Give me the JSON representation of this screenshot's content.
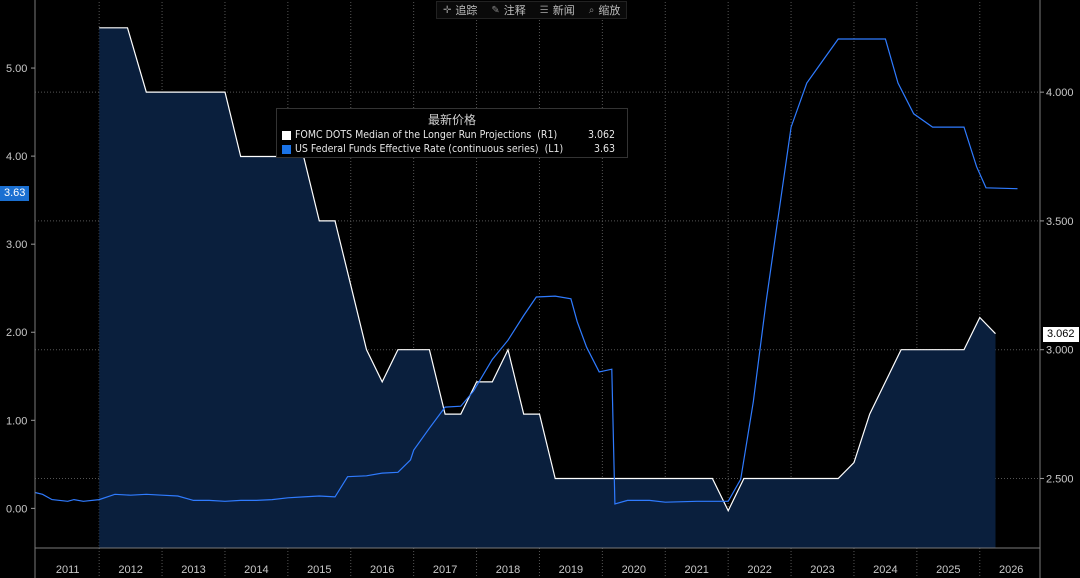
{
  "toolbar": {
    "items": [
      {
        "label": "追踪",
        "icon": "crosshair-icon",
        "glyph": "✛"
      },
      {
        "label": "注释",
        "icon": "pen-icon",
        "glyph": "✎"
      },
      {
        "label": "新闻",
        "icon": "news-icon",
        "glyph": "☰"
      },
      {
        "label": "缩放",
        "icon": "zoom-icon",
        "glyph": "⌕"
      }
    ]
  },
  "legend": {
    "title": "最新价格",
    "entries": [
      {
        "name": "FOMC DOTS Median of the Longer Run Projections  (R1)",
        "value": "3.062",
        "color": "#ffffff"
      },
      {
        "name": "US Federal Funds Effective Rate (continuous series)  (L1)",
        "value": "3.63",
        "color": "#1a73e8"
      }
    ]
  },
  "badges": {
    "left": {
      "text": "3.63",
      "bg": "#1a6fd1",
      "color": "#ffffff"
    },
    "right": {
      "text": "3.062",
      "bg": "#ffffff",
      "color": "#000000"
    }
  },
  "colors": {
    "background": "#000000",
    "area_fill": "#0a1f3d",
    "dots_line": "#ffffff",
    "fed_line": "#2f7bff",
    "grid": "#555555"
  },
  "chart_data": {
    "type": "line",
    "x_tick_labels": [
      "2011",
      "2012",
      "2013",
      "2014",
      "2015",
      "2016",
      "2017",
      "2018",
      "2019",
      "2020",
      "2021",
      "2022",
      "2023",
      "2024",
      "2025",
      "2026"
    ],
    "grid": true,
    "left_axis": {
      "ticks": [
        "0.00",
        "1.00",
        "2.00",
        "3.00",
        "4.00",
        "5.00"
      ],
      "ylim": [
        -0.45,
        5.75
      ]
    },
    "right_axis": {
      "ticks": [
        "2.500",
        "3.000",
        "3.500",
        "4.000"
      ],
      "ylim": [
        2.23,
        4.35
      ]
    },
    "series": [
      {
        "name": "FOMC DOTS Median of the Longer Run Projections",
        "axis": "right",
        "style": "area",
        "points": [
          [
            2012.0,
            4.25
          ],
          [
            2012.45,
            4.25
          ],
          [
            2012.75,
            4.0
          ],
          [
            2013.0,
            4.0
          ],
          [
            2013.5,
            4.0
          ],
          [
            2014.0,
            4.0
          ],
          [
            2014.25,
            3.75
          ],
          [
            2014.75,
            3.75
          ],
          [
            2015.25,
            3.75
          ],
          [
            2015.5,
            3.5
          ],
          [
            2015.75,
            3.5
          ],
          [
            2016.0,
            3.25
          ],
          [
            2016.25,
            3.0
          ],
          [
            2016.5,
            2.875
          ],
          [
            2016.75,
            3.0
          ],
          [
            2017.25,
            3.0
          ],
          [
            2017.5,
            2.75
          ],
          [
            2017.75,
            2.75
          ],
          [
            2018.0,
            2.875
          ],
          [
            2018.25,
            2.875
          ],
          [
            2018.5,
            3.0
          ],
          [
            2018.75,
            2.75
          ],
          [
            2019.0,
            2.75
          ],
          [
            2019.25,
            2.5
          ],
          [
            2020.0,
            2.5
          ],
          [
            2021.0,
            2.5
          ],
          [
            2021.75,
            2.5
          ],
          [
            2022.0,
            2.375
          ],
          [
            2022.25,
            2.5
          ],
          [
            2023.0,
            2.5
          ],
          [
            2023.5,
            2.5
          ],
          [
            2023.75,
            2.5
          ],
          [
            2024.0,
            2.562
          ],
          [
            2024.25,
            2.75
          ],
          [
            2024.5,
            2.875
          ],
          [
            2024.75,
            3.0
          ],
          [
            2025.0,
            3.0
          ],
          [
            2025.5,
            3.0
          ],
          [
            2025.75,
            3.0
          ],
          [
            2026.0,
            3.125
          ],
          [
            2026.25,
            3.062
          ]
        ]
      },
      {
        "name": "US Federal Funds Effective Rate (continuous series)",
        "axis": "left",
        "style": "line",
        "points": [
          [
            2010.98,
            0.18
          ],
          [
            2011.1,
            0.16
          ],
          [
            2011.25,
            0.1
          ],
          [
            2011.5,
            0.08
          ],
          [
            2011.6,
            0.1
          ],
          [
            2011.75,
            0.08
          ],
          [
            2012.0,
            0.1
          ],
          [
            2012.25,
            0.16
          ],
          [
            2012.5,
            0.15
          ],
          [
            2012.75,
            0.16
          ],
          [
            2013.0,
            0.15
          ],
          [
            2013.25,
            0.14
          ],
          [
            2013.5,
            0.09
          ],
          [
            2013.75,
            0.09
          ],
          [
            2014.0,
            0.08
          ],
          [
            2014.25,
            0.09
          ],
          [
            2014.5,
            0.09
          ],
          [
            2014.75,
            0.1
          ],
          [
            2015.0,
            0.12
          ],
          [
            2015.25,
            0.13
          ],
          [
            2015.5,
            0.14
          ],
          [
            2015.75,
            0.13
          ],
          [
            2015.95,
            0.36
          ],
          [
            2016.25,
            0.37
          ],
          [
            2016.5,
            0.4
          ],
          [
            2016.75,
            0.41
          ],
          [
            2016.95,
            0.55
          ],
          [
            2017.0,
            0.66
          ],
          [
            2017.25,
            0.91
          ],
          [
            2017.5,
            1.15
          ],
          [
            2017.75,
            1.16
          ],
          [
            2017.95,
            1.33
          ],
          [
            2018.25,
            1.69
          ],
          [
            2018.5,
            1.91
          ],
          [
            2018.75,
            2.19
          ],
          [
            2018.95,
            2.4
          ],
          [
            2019.25,
            2.41
          ],
          [
            2019.5,
            2.38
          ],
          [
            2019.6,
            2.12
          ],
          [
            2019.75,
            1.83
          ],
          [
            2019.95,
            1.55
          ],
          [
            2020.15,
            1.58
          ],
          [
            2020.2,
            0.05
          ],
          [
            2020.4,
            0.09
          ],
          [
            2020.75,
            0.09
          ],
          [
            2021.0,
            0.07
          ],
          [
            2021.5,
            0.08
          ],
          [
            2021.75,
            0.08
          ],
          [
            2022.0,
            0.08
          ],
          [
            2022.2,
            0.33
          ],
          [
            2022.4,
            1.21
          ],
          [
            2022.6,
            2.33
          ],
          [
            2022.75,
            3.08
          ],
          [
            2023.0,
            4.33
          ],
          [
            2023.25,
            4.83
          ],
          [
            2023.5,
            5.08
          ],
          [
            2023.75,
            5.33
          ],
          [
            2024.0,
            5.33
          ],
          [
            2024.5,
            5.33
          ],
          [
            2024.7,
            4.83
          ],
          [
            2024.95,
            4.48
          ],
          [
            2025.25,
            4.33
          ],
          [
            2025.75,
            4.33
          ],
          [
            2025.95,
            3.88
          ],
          [
            2026.1,
            3.64
          ],
          [
            2026.6,
            3.63
          ]
        ]
      }
    ],
    "last_values": {
      "FOMC DOTS Median of the Longer Run Projections": 3.062,
      "US Federal Funds Effective Rate (continuous series)": 3.63
    }
  }
}
